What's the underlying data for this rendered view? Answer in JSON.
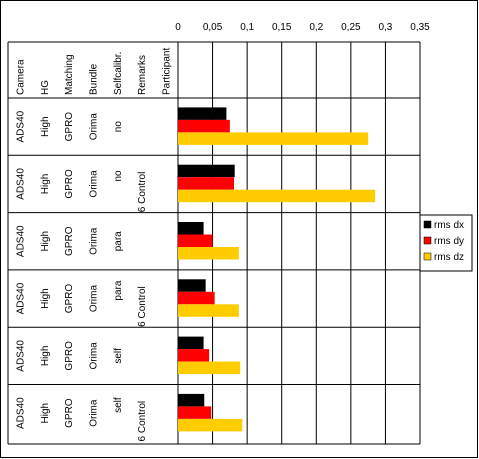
{
  "chart_data": {
    "type": "bar",
    "orientation": "horizontal",
    "x_ticks": [
      "0",
      "0,05",
      "0,1",
      "0,15",
      "0,2",
      "0,25",
      "0,3",
      "0,35"
    ],
    "xlim": [
      0,
      0.35
    ],
    "grid": true,
    "legend_position": "right",
    "row_headers": [
      "Camera",
      "HG",
      "Matching",
      "Bundle",
      "Selfcalibr.",
      "Remarks",
      "Participant"
    ],
    "rows": [
      {
        "cells": [
          "ADS40",
          "High",
          "GPRO",
          "Orima",
          "no",
          "",
          ""
        ],
        "values": [
          0.07,
          0.075,
          0.275
        ]
      },
      {
        "cells": [
          "ADS40",
          "High",
          "GPRO",
          "Orima",
          "no",
          "6 Control",
          ""
        ],
        "values": [
          0.082,
          0.081,
          0.285
        ]
      },
      {
        "cells": [
          "ADS40",
          "High",
          "GPRO",
          "Orima",
          "para",
          "",
          ""
        ],
        "values": [
          0.037,
          0.05,
          0.088
        ]
      },
      {
        "cells": [
          "ADS40",
          "High",
          "GPRO",
          "Orima",
          "para",
          "6 Control",
          ""
        ],
        "values": [
          0.04,
          0.053,
          0.088
        ]
      },
      {
        "cells": [
          "ADS40",
          "High",
          "GPRO",
          "Orima",
          "self",
          "",
          ""
        ],
        "values": [
          0.037,
          0.045,
          0.09
        ]
      },
      {
        "cells": [
          "ADS40",
          "High",
          "GPRO",
          "Orima",
          "self",
          "6 Control",
          ""
        ],
        "values": [
          0.038,
          0.048,
          0.093
        ]
      }
    ],
    "series": [
      {
        "name": "rms dx",
        "color": "#000000"
      },
      {
        "name": "rms dy",
        "color": "#ff0000"
      },
      {
        "name": "rms dz",
        "color": "#ffcc00"
      }
    ]
  }
}
